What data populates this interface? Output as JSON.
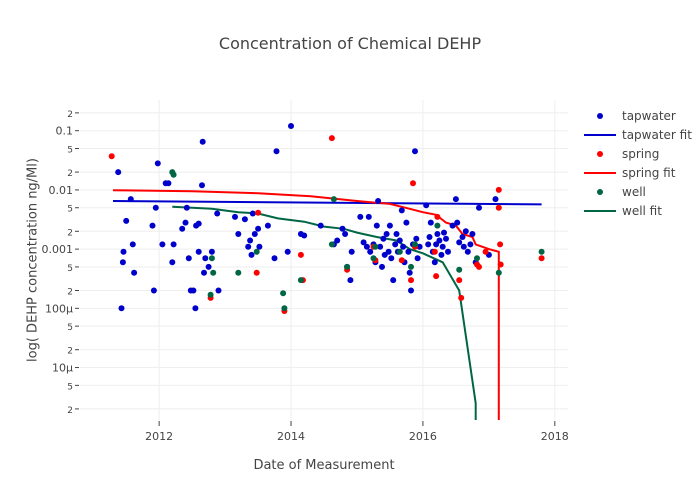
{
  "chart_data": {
    "type": "scatter",
    "title": "Concentration of Chemical DEHP",
    "xlabel": "Date of Measurement",
    "ylabel": "log( DEHP concentration ng/Ml)",
    "xlim": [
      2010.8,
      2018.2
    ],
    "ylim": [
      1.3e-06,
      0.33
    ],
    "yscale": "log",
    "grid": true,
    "legend_position": "right",
    "x_ticks": [
      {
        "value": 2012,
        "label": "2012"
      },
      {
        "value": 2014,
        "label": "2014"
      },
      {
        "value": 2016,
        "label": "2016"
      },
      {
        "value": 2018,
        "label": "2018"
      }
    ],
    "y_ticks": [
      {
        "value": 0.2,
        "label": "2",
        "minor": true
      },
      {
        "value": 0.1,
        "label": "0.1",
        "minor": false
      },
      {
        "value": 0.05,
        "label": "5",
        "minor": true
      },
      {
        "value": 0.02,
        "label": "2",
        "minor": true
      },
      {
        "value": 0.01,
        "label": "0.01",
        "minor": false
      },
      {
        "value": 0.005,
        "label": "5",
        "minor": true
      },
      {
        "value": 0.002,
        "label": "2",
        "minor": true
      },
      {
        "value": 0.001,
        "label": "0.001",
        "minor": false
      },
      {
        "value": 0.0005,
        "label": "5",
        "minor": true
      },
      {
        "value": 0.0002,
        "label": "2",
        "minor": true
      },
      {
        "value": 0.0001,
        "label": "100μ",
        "minor": false
      },
      {
        "value": 5e-05,
        "label": "5",
        "minor": true
      },
      {
        "value": 2e-05,
        "label": "2",
        "minor": true
      },
      {
        "value": 1e-05,
        "label": "10μ",
        "minor": false
      },
      {
        "value": 5e-06,
        "label": "5",
        "minor": true
      },
      {
        "value": 2e-06,
        "label": "2",
        "minor": true
      }
    ],
    "series": [
      {
        "name": "tapwater",
        "mode": "markers",
        "color": "#0000cc",
        "points": [
          [
            2011.38,
            0.02
          ],
          [
            2011.43,
            0.0001
          ],
          [
            2011.45,
            0.0006
          ],
          [
            2011.46,
            0.0009
          ],
          [
            2011.5,
            0.003
          ],
          [
            2011.57,
            0.007
          ],
          [
            2011.6,
            0.0012
          ],
          [
            2011.62,
            0.0004
          ],
          [
            2011.9,
            0.0025
          ],
          [
            2011.92,
            0.0002
          ],
          [
            2011.95,
            0.005
          ],
          [
            2011.98,
            0.028
          ],
          [
            2012.05,
            0.0012
          ],
          [
            2012.1,
            0.013
          ],
          [
            2012.14,
            0.013
          ],
          [
            2012.2,
            0.0006
          ],
          [
            2012.22,
            0.0012
          ],
          [
            2012.35,
            0.0022
          ],
          [
            2012.4,
            0.0028
          ],
          [
            2012.42,
            0.005
          ],
          [
            2012.45,
            0.0007
          ],
          [
            2012.48,
            0.0002
          ],
          [
            2012.52,
            0.0002
          ],
          [
            2012.55,
            0.0001
          ],
          [
            2012.56,
            0.0025
          ],
          [
            2012.6,
            0.0027
          ],
          [
            2012.6,
            0.0009
          ],
          [
            2012.65,
            0.012
          ],
          [
            2012.66,
            0.065
          ],
          [
            2012.68,
            0.0004
          ],
          [
            2012.7,
            0.0007
          ],
          [
            2012.75,
            0.0005
          ],
          [
            2012.8,
            0.0009
          ],
          [
            2012.88,
            0.004
          ],
          [
            2012.9,
            0.0002
          ],
          [
            2013.15,
            0.0035
          ],
          [
            2013.2,
            0.0018
          ],
          [
            2013.3,
            0.0032
          ],
          [
            2013.35,
            0.0011
          ],
          [
            2013.38,
            0.0014
          ],
          [
            2013.4,
            0.0008
          ],
          [
            2013.42,
            0.004
          ],
          [
            2013.45,
            0.0018
          ],
          [
            2013.5,
            0.0022
          ],
          [
            2013.52,
            0.0011
          ],
          [
            2013.65,
            0.0025
          ],
          [
            2013.75,
            0.0007
          ],
          [
            2013.78,
            0.045
          ],
          [
            2013.95,
            0.0009
          ],
          [
            2014.0,
            0.12
          ],
          [
            2014.15,
            0.0018
          ],
          [
            2014.2,
            0.0017
          ],
          [
            2014.45,
            0.0025
          ],
          [
            2014.65,
            0.0012
          ],
          [
            2014.7,
            0.0014
          ],
          [
            2014.78,
            0.0022
          ],
          [
            2014.82,
            0.0018
          ],
          [
            2014.85,
            0.0005
          ],
          [
            2014.9,
            0.0003
          ],
          [
            2014.92,
            0.0009
          ],
          [
            2015.05,
            0.0035
          ],
          [
            2015.1,
            0.0013
          ],
          [
            2015.15,
            0.0011
          ],
          [
            2015.18,
            0.0035
          ],
          [
            2015.2,
            0.0009
          ],
          [
            2015.25,
            0.0012
          ],
          [
            2015.28,
            0.0006
          ],
          [
            2015.3,
            0.0025
          ],
          [
            2015.32,
            0.0065
          ],
          [
            2015.35,
            0.0011
          ],
          [
            2015.38,
            0.0005
          ],
          [
            2015.4,
            0.0015
          ],
          [
            2015.42,
            0.0008
          ],
          [
            2015.45,
            0.0018
          ],
          [
            2015.48,
            0.0009
          ],
          [
            2015.5,
            0.0025
          ],
          [
            2015.52,
            0.0007
          ],
          [
            2015.55,
            0.0003
          ],
          [
            2015.58,
            0.0012
          ],
          [
            2015.6,
            0.0018
          ],
          [
            2015.62,
            0.0009
          ],
          [
            2015.65,
            0.0014
          ],
          [
            2015.68,
            0.0045
          ],
          [
            2015.7,
            0.0011
          ],
          [
            2015.72,
            0.0006
          ],
          [
            2015.75,
            0.0028
          ],
          [
            2015.78,
            0.0009
          ],
          [
            2015.8,
            0.0004
          ],
          [
            2015.82,
            0.0002
          ],
          [
            2015.85,
            0.0012
          ],
          [
            2015.88,
            0.045
          ],
          [
            2015.9,
            0.0015
          ],
          [
            2015.92,
            0.0007
          ],
          [
            2015.95,
            0.0011
          ],
          [
            2016.05,
            0.0055
          ],
          [
            2016.08,
            0.0012
          ],
          [
            2016.1,
            0.0016
          ],
          [
            2016.12,
            0.0028
          ],
          [
            2016.15,
            0.0009
          ],
          [
            2016.18,
            0.0006
          ],
          [
            2016.2,
            0.0012
          ],
          [
            2016.22,
            0.0018
          ],
          [
            2016.25,
            0.0014
          ],
          [
            2016.28,
            0.0008
          ],
          [
            2016.3,
            0.0011
          ],
          [
            2016.32,
            0.0019
          ],
          [
            2016.35,
            0.0015
          ],
          [
            2016.38,
            0.0009
          ],
          [
            2016.45,
            0.0025
          ],
          [
            2016.5,
            0.007
          ],
          [
            2016.52,
            0.0028
          ],
          [
            2016.55,
            0.0013
          ],
          [
            2016.6,
            0.0016
          ],
          [
            2016.62,
            0.0011
          ],
          [
            2016.65,
            0.002
          ],
          [
            2016.68,
            0.0009
          ],
          [
            2016.72,
            0.0012
          ],
          [
            2016.75,
            0.0018
          ],
          [
            2016.8,
            0.0006
          ],
          [
            2016.85,
            0.005
          ],
          [
            2017.0,
            0.0008
          ],
          [
            2017.1,
            0.007
          ]
        ]
      },
      {
        "name": "tapwater fit",
        "mode": "lines",
        "color": "#0000cc",
        "points": [
          [
            2011.3,
            0.0065
          ],
          [
            2017.8,
            0.0057
          ]
        ]
      },
      {
        "name": "spring",
        "mode": "markers",
        "color": "#ff0000",
        "points": [
          [
            2011.28,
            0.037
          ],
          [
            2012.78,
            0.00015
          ],
          [
            2013.48,
            0.0004
          ],
          [
            2013.5,
            0.0041
          ],
          [
            2013.9,
            9e-05
          ],
          [
            2014.15,
            0.0008
          ],
          [
            2014.18,
            0.0003
          ],
          [
            2014.62,
            0.075
          ],
          [
            2014.85,
            0.00045
          ],
          [
            2015.25,
            0.0011
          ],
          [
            2015.28,
            0.00065
          ],
          [
            2015.68,
            0.00065
          ],
          [
            2015.82,
            0.0003
          ],
          [
            2015.85,
            0.013
          ],
          [
            2015.88,
            0.0011
          ],
          [
            2016.18,
            0.0009
          ],
          [
            2016.2,
            0.00035
          ],
          [
            2016.22,
            0.0035
          ],
          [
            2016.55,
            0.0003
          ],
          [
            2016.58,
            0.00015
          ],
          [
            2016.82,
            0.00055
          ],
          [
            2016.85,
            0.0005
          ],
          [
            2016.95,
            0.0009
          ],
          [
            2017.15,
            0.01
          ],
          [
            2017.15,
            0.005
          ],
          [
            2017.17,
            0.0012
          ],
          [
            2017.18,
            0.00055
          ],
          [
            2017.8,
            0.0007
          ]
        ]
      },
      {
        "name": "spring fit",
        "mode": "lines",
        "color": "#ff0000",
        "points": [
          [
            2011.3,
            0.0099
          ],
          [
            2012.5,
            0.0095
          ],
          [
            2013.5,
            0.0088
          ],
          [
            2014.3,
            0.0078
          ],
          [
            2015.0,
            0.0065
          ],
          [
            2015.5,
            0.0058
          ],
          [
            2015.8,
            0.0048
          ],
          [
            2016.0,
            0.0042
          ],
          [
            2016.2,
            0.0038
          ],
          [
            2016.35,
            0.0028
          ],
          [
            2016.5,
            0.0025
          ],
          [
            2016.6,
            0.0018
          ],
          [
            2016.75,
            0.0016
          ],
          [
            2016.8,
            0.0012
          ],
          [
            2017.0,
            0.001
          ],
          [
            2017.15,
            0.0009
          ],
          [
            2017.15,
            1.3e-06
          ]
        ]
      },
      {
        "name": "well",
        "mode": "markers",
        "color": "#006644",
        "points": [
          [
            2012.2,
            0.02
          ],
          [
            2012.22,
            0.018
          ],
          [
            2012.78,
            0.00017
          ],
          [
            2012.8,
            0.0007
          ],
          [
            2012.82,
            0.0004
          ],
          [
            2013.2,
            0.0004
          ],
          [
            2013.48,
            0.0009
          ],
          [
            2013.88,
            0.00018
          ],
          [
            2013.9,
            0.0001
          ],
          [
            2014.15,
            0.0003
          ],
          [
            2014.62,
            0.0012
          ],
          [
            2014.65,
            0.007
          ],
          [
            2014.85,
            0.0005
          ],
          [
            2015.25,
            0.0007
          ],
          [
            2015.28,
            0.0011
          ],
          [
            2015.65,
            0.0009
          ],
          [
            2015.82,
            0.0005
          ],
          [
            2015.88,
            0.0012
          ],
          [
            2016.22,
            0.0025
          ],
          [
            2016.55,
            0.00045
          ],
          [
            2016.82,
            0.0007
          ],
          [
            2017.15,
            0.0004
          ],
          [
            2017.8,
            0.0009
          ]
        ]
      },
      {
        "name": "well fit",
        "mode": "lines",
        "color": "#006644",
        "points": [
          [
            2012.2,
            0.0052
          ],
          [
            2012.8,
            0.0048
          ],
          [
            2013.2,
            0.0042
          ],
          [
            2013.5,
            0.004
          ],
          [
            2013.8,
            0.0033
          ],
          [
            2014.2,
            0.0029
          ],
          [
            2014.5,
            0.0024
          ],
          [
            2014.8,
            0.0022
          ],
          [
            2015.0,
            0.0019
          ],
          [
            2015.3,
            0.0016
          ],
          [
            2015.6,
            0.0014
          ],
          [
            2015.8,
            0.001
          ],
          [
            2016.0,
            0.00085
          ],
          [
            2016.3,
            0.0006
          ],
          [
            2016.55,
            0.0002
          ],
          [
            2016.8,
            2.5e-06
          ],
          [
            2016.8,
            1.3e-06
          ]
        ]
      }
    ]
  },
  "legend": {
    "items": [
      {
        "label": "tapwater",
        "kind": "marker",
        "color": "#0000cc"
      },
      {
        "label": "tapwater fit",
        "kind": "line",
        "color": "#0000cc"
      },
      {
        "label": "spring",
        "kind": "marker",
        "color": "#ff0000"
      },
      {
        "label": "spring fit",
        "kind": "line",
        "color": "#ff0000"
      },
      {
        "label": "well",
        "kind": "marker",
        "color": "#006644"
      },
      {
        "label": "well fit",
        "kind": "line",
        "color": "#006644"
      }
    ]
  }
}
